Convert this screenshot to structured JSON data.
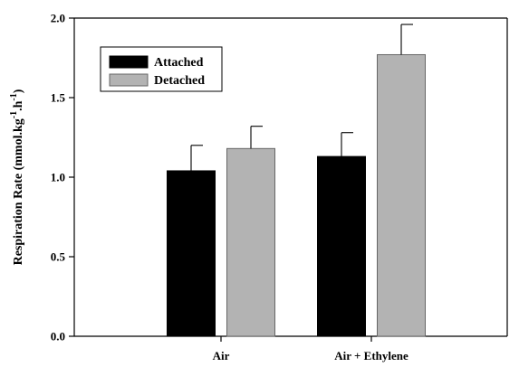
{
  "chart_data": {
    "type": "bar",
    "title": "",
    "xlabel": "",
    "ylabel_parts": {
      "base": "Respiration Rate (mmol.kg",
      "sup1": "-1",
      "mid": ".h",
      "sup2": "-1",
      "end": ")"
    },
    "categories": [
      "Air",
      "Air + Ethylene"
    ],
    "series": [
      {
        "name": "Attached",
        "values": [
          1.04,
          1.13
        ],
        "errors": [
          0.16,
          0.15
        ],
        "color": "#000000"
      },
      {
        "name": "Detached",
        "values": [
          1.18,
          1.77
        ],
        "errors": [
          0.14,
          0.19
        ],
        "color": "#b3b3b3"
      }
    ],
    "ylim": [
      0.0,
      2.0
    ],
    "yticks": [
      "0.0",
      "0.5",
      "1.0",
      "1.5",
      "2.0"
    ],
    "legend_position": "top-left",
    "grid": false
  }
}
